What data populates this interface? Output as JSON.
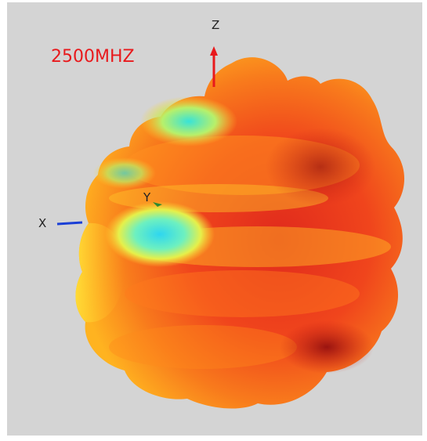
{
  "frequency_label": "2500MHZ",
  "axes": {
    "x_label": "X",
    "y_label": "Y",
    "z_label": "Z"
  },
  "colors": {
    "background": "#d4d4d4",
    "frequency_text": "#e8191c",
    "z_axis": "#e8191c",
    "x_axis": "#1a3fd6",
    "y_axis": "#2f8a2f",
    "pattern_high": "#d9261b",
    "pattern_mid": "#ff9a1a",
    "pattern_low": "#3fe6f0"
  },
  "icons": {
    "pattern": "3d-radiation-pattern-surface",
    "axes": "xyz-axis-triad"
  }
}
